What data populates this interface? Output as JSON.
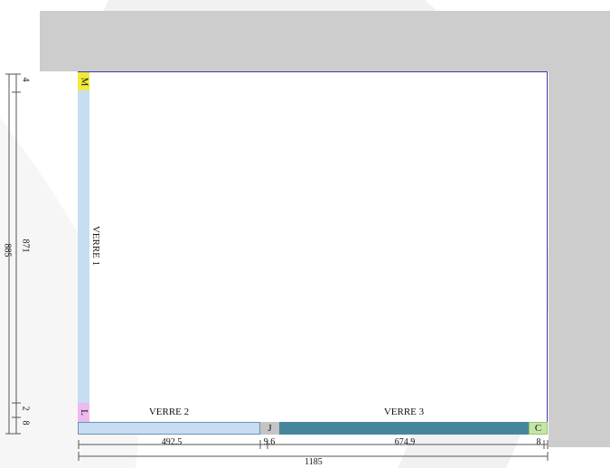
{
  "glasses": {
    "verre1": "VERRE 1",
    "verre2": "VERRE 2",
    "verre3": "VERRE 3"
  },
  "pieces": {
    "m": "M",
    "l": "L",
    "j": "J",
    "c": "C"
  },
  "dimensions": {
    "bottom": {
      "seg1": "492.5",
      "seg2": "9.6",
      "seg3": "674.9",
      "seg4": "8",
      "total": "1185"
    },
    "left": {
      "top": "4",
      "middle": "871",
      "bottom1": "2",
      "bottom2": "8",
      "total": "885"
    }
  },
  "colors": {
    "wall": "#cdcdcd",
    "glass_light": "#c7ddf1",
    "glass_dark": "#46869c",
    "piece_m": "#f2ea3a",
    "piece_l": "#eeb9ee",
    "piece_j": "#c4c4c4",
    "piece_c": "#c4e6a6"
  }
}
